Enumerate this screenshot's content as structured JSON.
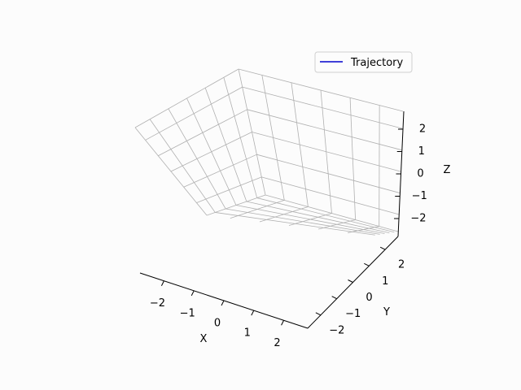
{
  "chart_data": {
    "type": "line",
    "projection": "3d",
    "xlabel": "X",
    "ylabel": "Y",
    "zlabel": "Z",
    "xlim": [
      -2.8,
      2.8
    ],
    "ylim": [
      -2.8,
      2.8
    ],
    "zlim": [
      -2.8,
      2.8
    ],
    "xticks": [
      -2,
      -1,
      0,
      1,
      2
    ],
    "yticks": [
      -2,
      -1,
      0,
      1,
      2
    ],
    "zticks": [
      -2,
      -1,
      0,
      1,
      2
    ],
    "xtick_labels": [
      "−2",
      "−1",
      "0",
      "1",
      "2"
    ],
    "ytick_labels": [
      "−2",
      "−1",
      "0",
      "1",
      "2"
    ],
    "ztick_labels": [
      "−2",
      "−1",
      "0",
      "1",
      "2"
    ],
    "grid": true,
    "legend_position": "top-right",
    "series": [
      {
        "name": "Trajectory",
        "color": "#0000cc",
        "x": [],
        "y": [],
        "z": []
      }
    ]
  }
}
